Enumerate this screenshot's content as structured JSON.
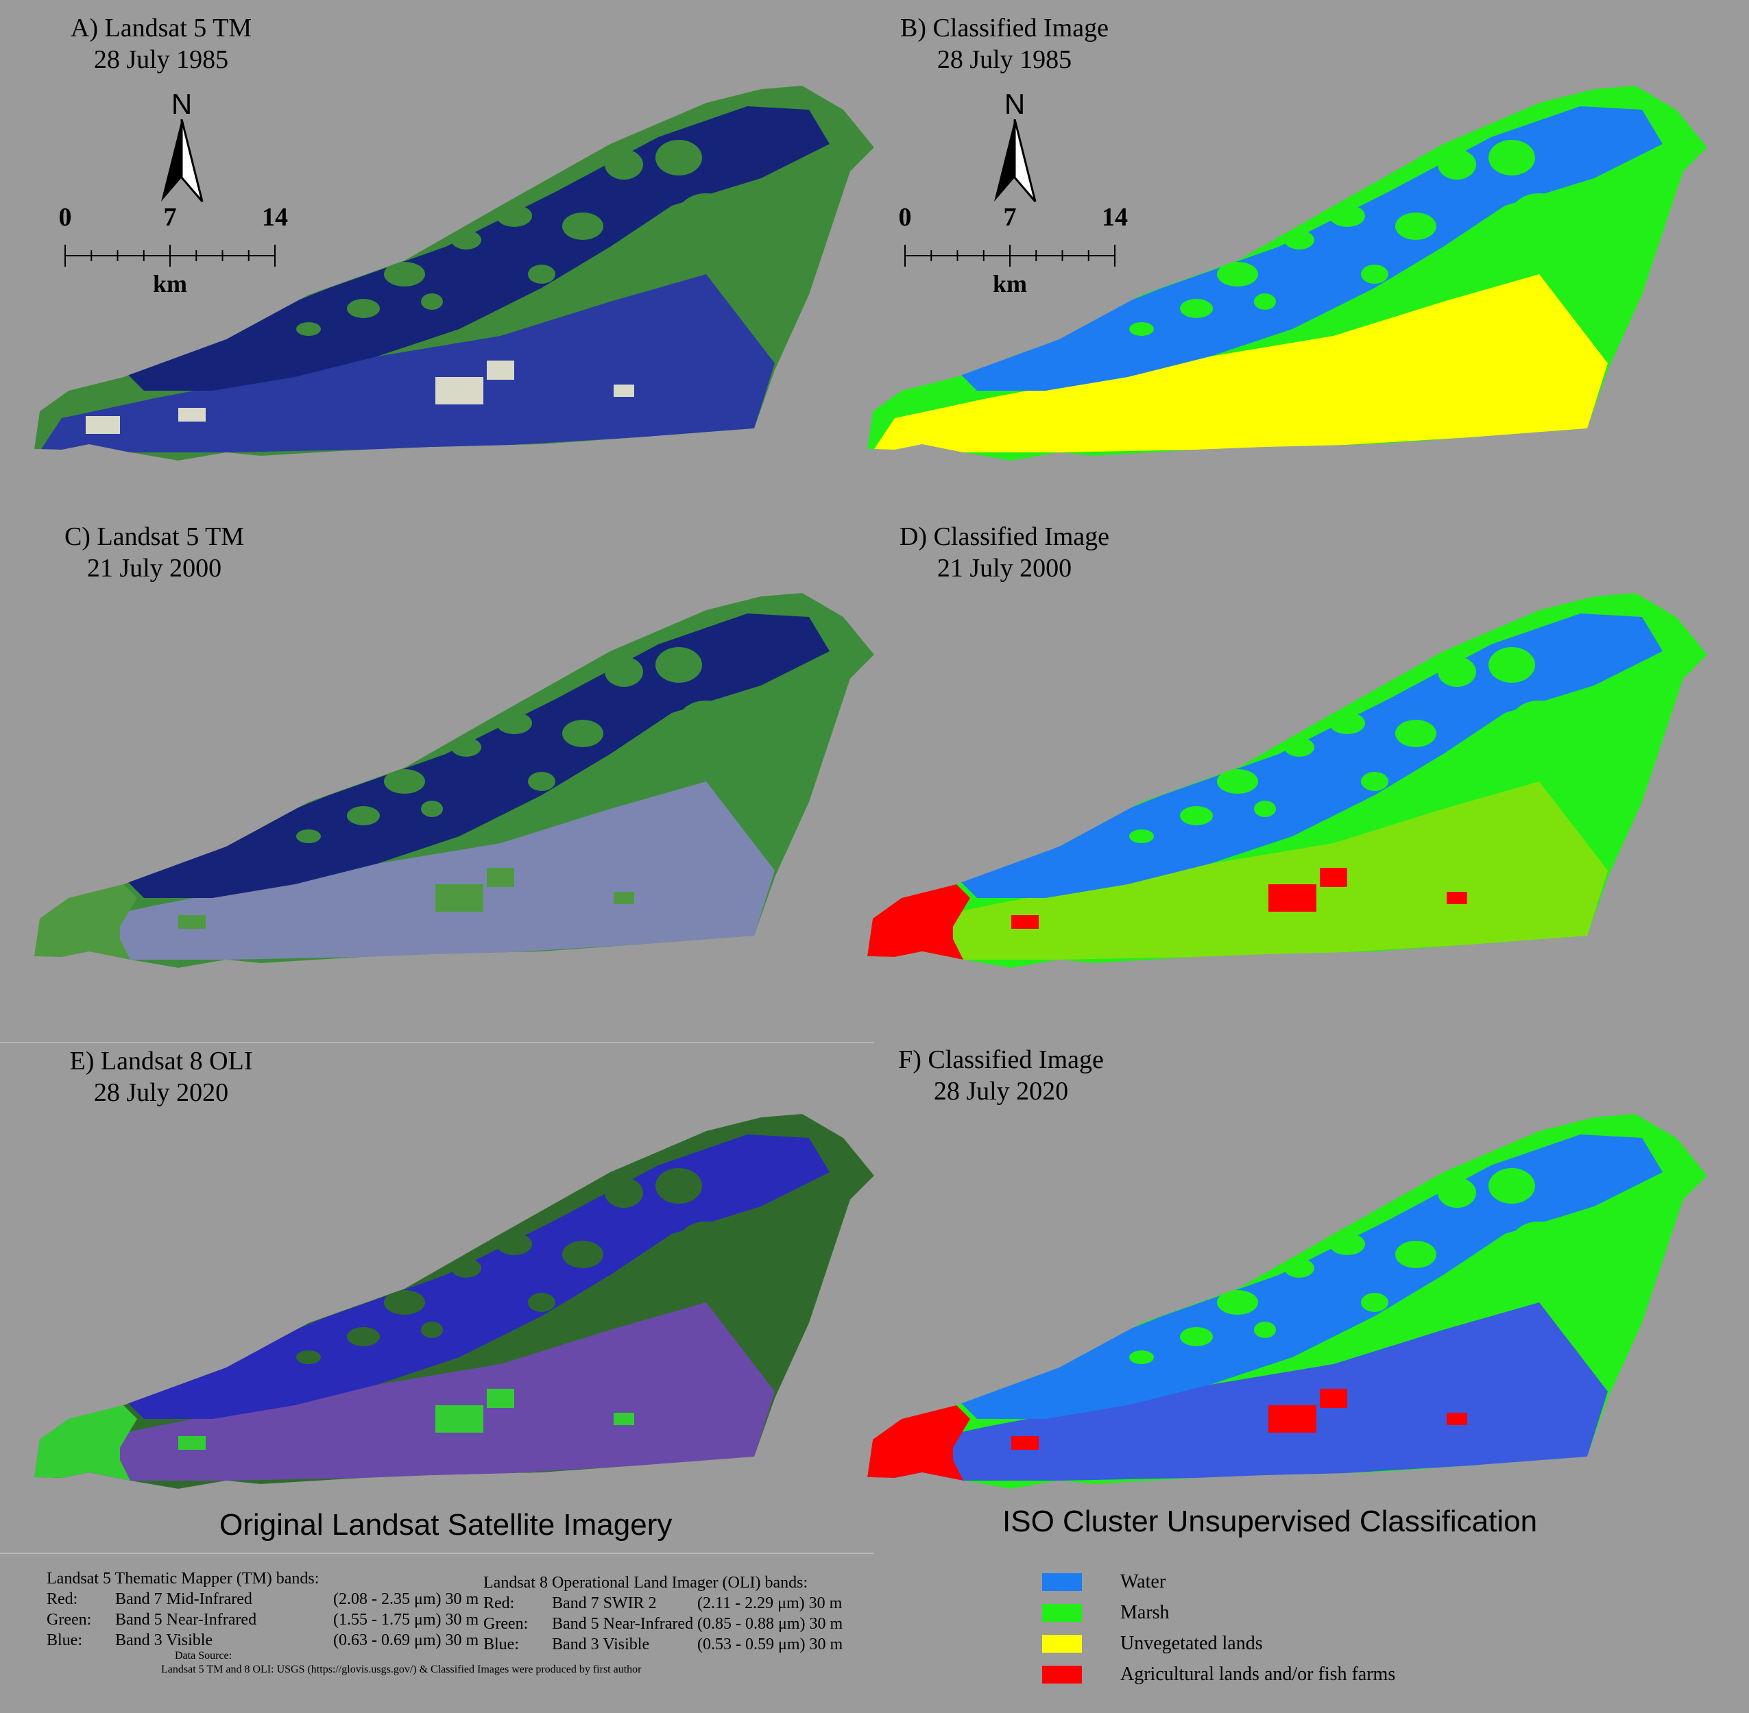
{
  "panels": [
    {
      "id": "A",
      "title": "A) Landsat 5 TM",
      "date": "28 July 1985",
      "kind": "satellite",
      "palette": "tm1985"
    },
    {
      "id": "B",
      "title": "B) Classified Image",
      "date": "28 July 1985",
      "kind": "classified",
      "palette": "cls1985"
    },
    {
      "id": "C",
      "title": "C) Landsat 5 TM",
      "date": "21 July 2000",
      "kind": "satellite",
      "palette": "tm2000"
    },
    {
      "id": "D",
      "title": "D) Classified Image",
      "date": "21 July 2000",
      "kind": "classified",
      "palette": "cls2000"
    },
    {
      "id": "E",
      "title": "E) Landsat 8 OLI",
      "date": "28 July 2020",
      "kind": "satellite",
      "palette": "oli2020"
    },
    {
      "id": "F",
      "title": "F) Classified Image",
      "date": "28 July 2020",
      "kind": "classified",
      "palette": "cls2020"
    }
  ],
  "north_arrow": {
    "label": "N",
    "icon": "north-arrow-icon"
  },
  "scale_bar": {
    "ticks": [
      "0",
      "7",
      "14"
    ],
    "unit": "km"
  },
  "section_titles": {
    "left": "Original Landsat Satellite Imagery",
    "right": "ISO Cluster Unsupervised Classification"
  },
  "tm_bands": {
    "heading": "Landsat 5 Thematic Mapper (TM) bands:",
    "rows": [
      {
        "channel": "Red:",
        "band": "Band 7 Mid-Infrared",
        "range": "(2.08 - 2.35 μm) 30 m"
      },
      {
        "channel": "Green:",
        "band": "Band 5 Near-Infrared",
        "range": "(1.55 - 1.75 μm) 30 m"
      },
      {
        "channel": "Blue:",
        "band": "Band 3 Visible",
        "range": "(0.63 - 0.69 μm) 30 m"
      }
    ]
  },
  "oli_bands": {
    "heading": "Landsat 8 Operational Land Imager (OLI)  bands:",
    "rows": [
      {
        "channel": "Red:",
        "band": "Band 7 SWIR 2",
        "range": "(2.11 - 2.29 μm) 30 m"
      },
      {
        "channel": "Green:",
        "band": "Band 5 Near-Infrared",
        "range": "(0.85 - 0.88 μm) 30 m"
      },
      {
        "channel": "Blue:",
        "band": "Band 3 Visible",
        "range": "(0.53 - 0.59 μm) 30 m"
      }
    ]
  },
  "data_source": {
    "label": "Data Source:",
    "text": "Landsat 5 TM and 8 OLI: USGS (https://glovis.usgs.gov/) & Classified Images were produced by first author"
  },
  "legend": [
    {
      "label": "Water",
      "color": "#1e7cf2"
    },
    {
      "label": "Marsh",
      "color": "#22ee18"
    },
    {
      "label": "Unvegetated lands",
      "color": "#ffff00"
    },
    {
      "label": "Agricultural lands and/or fish farms",
      "color": "#ff0000"
    }
  ],
  "palettes": {
    "tm1985": {
      "base": "#1d2c8c",
      "water": "#152478",
      "marsh": "#3e8a3a",
      "south": "#2a3aa0",
      "patch": "#d9d9c8"
    },
    "tm2000": {
      "base": "#1d2c8c",
      "water": "#152478",
      "marsh": "#3d8c3c",
      "south": "#7d86b0",
      "patch": "#4f9a40"
    },
    "oli2020": {
      "base": "#2424a8",
      "water": "#2a2ab8",
      "marsh": "#2f6a2c",
      "south": "#6a4aa8",
      "patch": "#33cc33"
    },
    "cls1985": {
      "base": "#1e7cf2",
      "water": "#1e7cf2",
      "marsh": "#22ee18",
      "south": "#ffff00",
      "patch": "#ffff00"
    },
    "cls2000": {
      "base": "#1e7cf2",
      "water": "#1e7cf2",
      "marsh": "#22ee18",
      "south": "#7de20c",
      "patch": "#ff0000"
    },
    "cls2020": {
      "base": "#1e7cf2",
      "water": "#1e7cf2",
      "marsh": "#22ee18",
      "south": "#3a5ae0",
      "patch": "#ff0000"
    }
  }
}
